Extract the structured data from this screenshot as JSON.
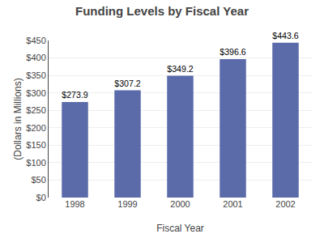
{
  "chart_data": {
    "type": "bar",
    "title": "Funding Levels by Fiscal Year",
    "xlabel": "Fiscal Year",
    "ylabel": "(Dollars in Millions)",
    "categories": [
      "1998",
      "1999",
      "2000",
      "2001",
      "2002"
    ],
    "values": [
      273.9,
      307.2,
      349.2,
      396.6,
      443.6
    ],
    "value_labels": [
      "$273.9",
      "$307.2",
      "$349.2",
      "$396.6",
      "$443.6"
    ],
    "data_labels": true,
    "color": "#5b6baa",
    "ylim": [
      0,
      450
    ],
    "yticks": [
      {
        "value": 0,
        "label": "$0"
      },
      {
        "value": 50,
        "label": "$50"
      },
      {
        "value": 100,
        "label": "$100"
      },
      {
        "value": 150,
        "label": "$150"
      },
      {
        "value": 200,
        "label": "$200"
      },
      {
        "value": 250,
        "label": "$250"
      },
      {
        "value": 300,
        "label": "$300"
      },
      {
        "value": 350,
        "label": "$350"
      },
      {
        "value": 400,
        "label": "$400"
      },
      {
        "value": 450,
        "label": "$450"
      }
    ],
    "grid": true
  }
}
